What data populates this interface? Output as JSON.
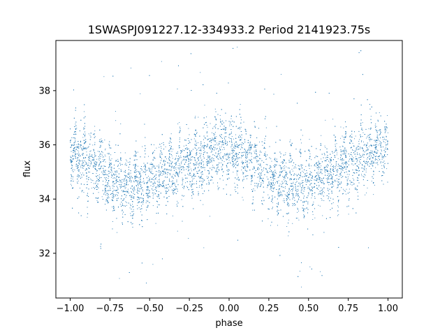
{
  "chart_data": {
    "type": "scatter",
    "title": "1SWASPJ091227.12-334933.2 Period 2141923.75s",
    "xlabel": "phase",
    "ylabel": "flux",
    "xlim": [
      -1.09,
      1.09
    ],
    "ylim": [
      30.35,
      39.85
    ],
    "xticks": [
      -1.0,
      -0.75,
      -0.5,
      -0.25,
      0.0,
      0.25,
      0.5,
      0.75,
      1.0
    ],
    "xtick_labels": [
      "−1.00",
      "−0.75",
      "−0.50",
      "−0.25",
      "0.00",
      "0.25",
      "0.50",
      "0.75",
      "1.00"
    ],
    "yticks": [
      32,
      34,
      36,
      38
    ],
    "ytick_labels": [
      "32",
      "34",
      "36",
      "38"
    ],
    "grid": false,
    "series": [
      {
        "color": "#1f77b4",
        "marker": "point",
        "x_range": [
          -1.0,
          1.0
        ],
        "profile": {
          "phase": [
            -1.0,
            -0.9,
            -0.8,
            -0.7,
            -0.6,
            -0.5,
            -0.4,
            -0.3,
            -0.2,
            -0.1,
            0.0,
            0.1,
            0.2,
            0.3,
            0.4,
            0.5,
            0.6,
            0.7,
            0.8,
            0.9,
            1.0
          ],
          "median_flux": [
            35.7,
            35.4,
            35.0,
            34.6,
            34.5,
            34.6,
            34.9,
            35.2,
            35.3,
            35.8,
            35.9,
            35.5,
            35.1,
            34.7,
            34.5,
            34.6,
            34.9,
            35.2,
            35.4,
            35.8,
            35.8
          ]
        }
      }
    ]
  }
}
